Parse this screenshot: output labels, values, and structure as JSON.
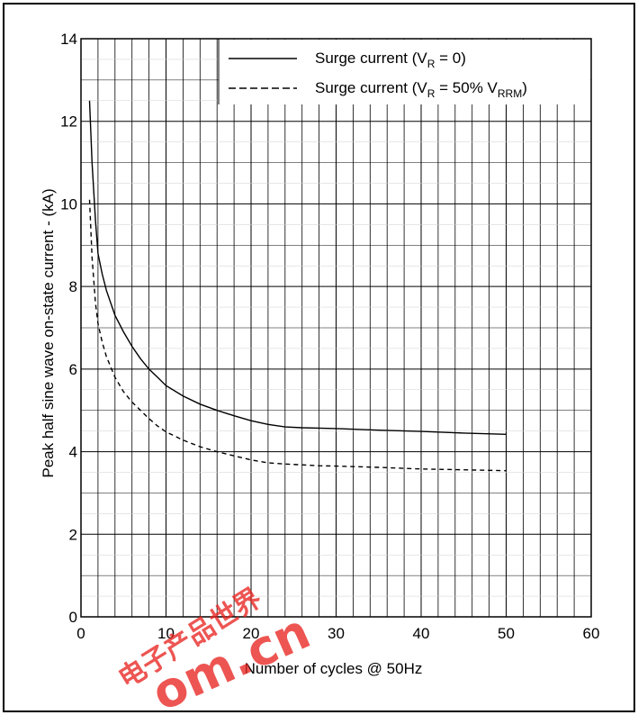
{
  "chart_data": {
    "type": "line",
    "title": "",
    "xlabel": "Number of cycles @ 50Hz",
    "ylabel": "Peak half sine wave on-state current - (kA)",
    "xlim": [
      0,
      60
    ],
    "ylim": [
      0,
      14
    ],
    "xticks": [
      "0",
      "10",
      "20",
      "30",
      "40",
      "50",
      "60"
    ],
    "yticks": [
      "0",
      "2",
      "4",
      "6",
      "8",
      "10",
      "12",
      "14"
    ],
    "grid": true,
    "legend_position": "top-right",
    "series": [
      {
        "name": "Surge current (VR = 0)",
        "legend": {
          "main": "Surge current (V",
          "sub": "R",
          "tail": " = 0)"
        },
        "style": "solid",
        "x": [
          1,
          1.3,
          1.7,
          2,
          2.5,
          3,
          4,
          5,
          6,
          7,
          8,
          9,
          10,
          12,
          14,
          16,
          18,
          20,
          22,
          24,
          26,
          28,
          30,
          35,
          40,
          45,
          50
        ],
        "y": [
          12.5,
          11.0,
          9.6,
          8.8,
          8.3,
          7.9,
          7.3,
          6.9,
          6.55,
          6.25,
          6.0,
          5.8,
          5.6,
          5.35,
          5.15,
          5.0,
          4.87,
          4.75,
          4.66,
          4.6,
          4.58,
          4.57,
          4.56,
          4.52,
          4.49,
          4.45,
          4.42
        ]
      },
      {
        "name": "Surge current (VR = 50% VRRM)",
        "legend": {
          "main": "Surge current (V",
          "sub": "R",
          "tail": " = 50% V",
          "sub2": "RRM",
          "close": ")"
        },
        "style": "dashed",
        "x": [
          1,
          1.3,
          1.7,
          2,
          2.5,
          3,
          4,
          5,
          6,
          7,
          8,
          9,
          10,
          12,
          14,
          16,
          18,
          20,
          22,
          24,
          26,
          28,
          30,
          35,
          40,
          45,
          50
        ],
        "y": [
          10.1,
          8.7,
          7.6,
          7.1,
          6.65,
          6.3,
          5.8,
          5.45,
          5.2,
          5.0,
          4.8,
          4.62,
          4.48,
          4.28,
          4.12,
          4.0,
          3.9,
          3.8,
          3.73,
          3.7,
          3.68,
          3.66,
          3.65,
          3.62,
          3.58,
          3.56,
          3.54
        ]
      }
    ]
  },
  "watermark": {
    "text1": "电子产品世界",
    "text2": "om.cn",
    "color": "#e8231e"
  }
}
